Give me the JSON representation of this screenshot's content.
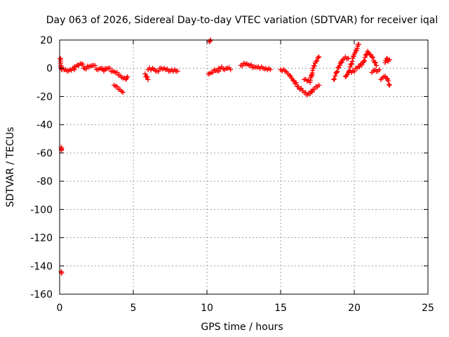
{
  "chart_data": {
    "type": "scatter",
    "title": "Day 063 of 2026, Sidereal Day-to-day VTEC variation (SDTVAR) for receiver iqal",
    "xlabel": "GPS time / hours",
    "ylabel": "SDTVAR / TECUs",
    "xlim": [
      0,
      25
    ],
    "ylim": [
      -160,
      20
    ],
    "xticks": [
      0,
      5,
      10,
      15,
      20,
      25
    ],
    "yticks": [
      20,
      0,
      -20,
      -40,
      -60,
      -80,
      -100,
      -120,
      -140,
      -160
    ],
    "grid": true,
    "marker": "+",
    "series_color": "#ff0000",
    "segments": [
      {
        "x0": 0.05,
        "x1": 0.15,
        "points": [
          [
            0.05,
            7
          ],
          [
            0.08,
            2
          ],
          [
            0.1,
            0
          ],
          [
            0.12,
            1
          ],
          [
            0.15,
            -1
          ]
        ]
      },
      {
        "x0": 0.1,
        "x1": 0.15,
        "points": [
          [
            0.1,
            -56
          ],
          [
            0.12,
            -58
          ],
          [
            0.14,
            -57
          ]
        ]
      },
      {
        "x0": 0.1,
        "x1": 0.15,
        "points": [
          [
            0.1,
            -144
          ],
          [
            0.12,
            -145
          ],
          [
            0.14,
            -145
          ]
        ]
      },
      {
        "x0": 0.3,
        "x1": 1.0,
        "points": [
          [
            0.3,
            -1
          ],
          [
            0.5,
            -2
          ],
          [
            0.7,
            -1
          ],
          [
            0.9,
            0
          ],
          [
            1.0,
            -1
          ]
        ]
      },
      {
        "x0": 1.0,
        "x1": 3.0,
        "points": [
          [
            1.0,
            1
          ],
          [
            1.3,
            2
          ],
          [
            1.5,
            3
          ],
          [
            1.7,
            0
          ],
          [
            2.0,
            1
          ],
          [
            2.3,
            2
          ],
          [
            2.6,
            -1
          ],
          [
            2.8,
            0
          ],
          [
            3.0,
            -2
          ]
        ]
      },
      {
        "x0": 3.0,
        "x1": 4.6,
        "points": [
          [
            3.0,
            -1
          ],
          [
            3.3,
            0
          ],
          [
            3.6,
            -2
          ],
          [
            3.9,
            -3
          ],
          [
            4.1,
            -5
          ],
          [
            4.3,
            -7
          ],
          [
            4.5,
            -8
          ],
          [
            4.6,
            -6
          ]
        ]
      },
      {
        "x0": 3.7,
        "x1": 4.4,
        "points": [
          [
            3.7,
            -12
          ],
          [
            3.9,
            -13
          ],
          [
            4.1,
            -15
          ],
          [
            4.3,
            -17
          ]
        ]
      },
      {
        "x0": 5.8,
        "x1": 6.0,
        "points": [
          [
            5.8,
            -4
          ],
          [
            5.9,
            -6
          ],
          [
            6.0,
            -8
          ]
        ]
      },
      {
        "x0": 6.0,
        "x1": 8.0,
        "points": [
          [
            6.0,
            -1
          ],
          [
            6.3,
            0
          ],
          [
            6.6,
            -2
          ],
          [
            6.9,
            0
          ],
          [
            7.2,
            -1
          ],
          [
            7.5,
            -2
          ],
          [
            7.8,
            -1
          ],
          [
            8.0,
            -2
          ]
        ]
      },
      {
        "x0": 10.15,
        "x1": 10.25,
        "points": [
          [
            10.15,
            19
          ],
          [
            10.2,
            19
          ],
          [
            10.25,
            20
          ]
        ]
      },
      {
        "x0": 10.1,
        "x1": 10.8,
        "points": [
          [
            10.1,
            -4
          ],
          [
            10.3,
            -3
          ],
          [
            10.5,
            -1
          ],
          [
            10.8,
            -2
          ]
        ]
      },
      {
        "x0": 10.8,
        "x1": 11.6,
        "points": [
          [
            10.8,
            0
          ],
          [
            11.0,
            1
          ],
          [
            11.2,
            -1
          ],
          [
            11.4,
            0
          ],
          [
            11.6,
            -1
          ]
        ]
      },
      {
        "x0": 12.3,
        "x1": 14.3,
        "points": [
          [
            12.3,
            2
          ],
          [
            12.6,
            3
          ],
          [
            12.9,
            2
          ],
          [
            13.2,
            1
          ],
          [
            13.5,
            1
          ],
          [
            13.8,
            0
          ],
          [
            14.1,
            -1
          ],
          [
            14.3,
            -1
          ]
        ]
      },
      {
        "x0": 15.0,
        "x1": 17.6,
        "points": [
          [
            15.0,
            -1
          ],
          [
            15.3,
            -2
          ],
          [
            15.6,
            -5
          ],
          [
            15.9,
            -9
          ],
          [
            16.2,
            -13
          ],
          [
            16.5,
            -16
          ],
          [
            16.8,
            -19
          ],
          [
            17.0,
            -18
          ],
          [
            17.2,
            -15
          ],
          [
            17.4,
            -13
          ],
          [
            17.6,
            -12
          ]
        ]
      },
      {
        "x0": 16.6,
        "x1": 17.6,
        "points": [
          [
            16.6,
            -8
          ],
          [
            16.8,
            -9
          ],
          [
            17.0,
            -10
          ],
          [
            17.2,
            0
          ],
          [
            17.4,
            5
          ],
          [
            17.6,
            8
          ]
        ]
      },
      {
        "x0": 18.6,
        "x1": 19.6,
        "points": [
          [
            18.6,
            -8
          ],
          [
            18.8,
            -3
          ],
          [
            19.0,
            2
          ],
          [
            19.2,
            6
          ],
          [
            19.4,
            8
          ],
          [
            19.6,
            7
          ]
        ]
      },
      {
        "x0": 19.4,
        "x1": 20.3,
        "points": [
          [
            19.4,
            -6
          ],
          [
            19.6,
            -3
          ],
          [
            19.8,
            3
          ],
          [
            20.0,
            10
          ],
          [
            20.2,
            14
          ],
          [
            20.3,
            17
          ]
        ]
      },
      {
        "x0": 19.8,
        "x1": 21.5,
        "points": [
          [
            19.8,
            -3
          ],
          [
            20.2,
            0
          ],
          [
            20.6,
            4
          ],
          [
            20.9,
            12
          ],
          [
            21.2,
            8
          ],
          [
            21.5,
            2
          ]
        ]
      },
      {
        "x0": 21.2,
        "x1": 21.7,
        "points": [
          [
            21.2,
            -3
          ],
          [
            21.4,
            -1
          ],
          [
            21.6,
            -2
          ],
          [
            21.7,
            -1
          ]
        ]
      },
      {
        "x0": 21.8,
        "x1": 22.4,
        "points": [
          [
            21.8,
            -8
          ],
          [
            22.0,
            -6
          ],
          [
            22.2,
            -7
          ],
          [
            22.4,
            -12
          ]
        ]
      },
      {
        "x0": 22.1,
        "x1": 22.4,
        "points": [
          [
            22.1,
            4
          ],
          [
            22.2,
            7
          ],
          [
            22.3,
            5
          ],
          [
            22.4,
            6
          ]
        ]
      }
    ]
  }
}
